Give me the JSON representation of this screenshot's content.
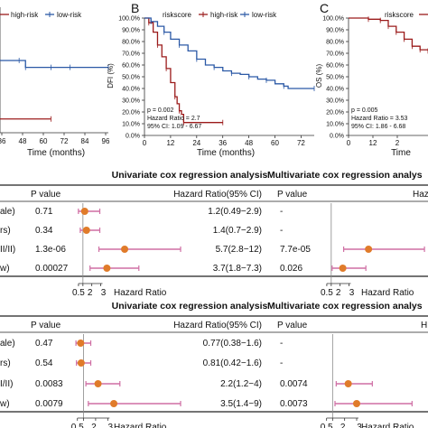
{
  "km_panels": [
    {
      "panel_label": "",
      "legend_title": "",
      "legend": [
        "high-risk",
        "low-risk"
      ],
      "x_ticks": [
        "36",
        "48",
        "60",
        "72",
        "84",
        "96"
      ],
      "y_ticks": [],
      "ylabel": "",
      "xlabel": "Time (months)",
      "annotation": []
    },
    {
      "panel_label": "B",
      "legend_title": "riskscore",
      "legend": [
        "high-risk",
        "low-risk"
      ],
      "x_ticks": [
        "0",
        "12",
        "24",
        "36",
        "48",
        "60",
        "72"
      ],
      "y_ticks": [
        "100.0%",
        "90.0%",
        "80.0%",
        "70.0%",
        "60.0%",
        "50.0%",
        "40.0%",
        "30.0%",
        "20.0%",
        "10.0%",
        "0.0%"
      ],
      "ylabel": "DFI (%)",
      "xlabel": "Time (months)",
      "annotation": [
        "p = 0.002",
        "Hazard Ratio = 2.7",
        "95% CI: 1.09 - 6.67"
      ]
    },
    {
      "panel_label": "C",
      "legend_title": "riskscore",
      "legend": [
        "high-risk",
        "low-risk"
      ],
      "x_ticks": [
        "0",
        "12",
        "2"
      ],
      "y_ticks": [
        "100.0%",
        "90.0%",
        "80.0%",
        "70.0%",
        "60.0%",
        "50.0%",
        "40.0%",
        "30.0%",
        "20.0%",
        "10.0%",
        "0.0%"
      ],
      "ylabel": "OS (%)",
      "xlabel": "Time",
      "annotation": [
        "p = 0.005",
        "Hazard Ratio = 3.53",
        "95% CI: 1.86 - 6.68"
      ]
    }
  ],
  "forest_tables": [
    {
      "uni_title": "Univariate cox regression analysis",
      "multi_title": "Multivariate cox regression analys",
      "p_header": "P value",
      "hr_header": "Hazard Ratio(95% CI)",
      "multi_p_header": "P value",
      "multi_hr_header": "Haza",
      "row_labels": [
        "ale)",
        "rs)",
        "II/II)",
        "w)"
      ],
      "uni_p": [
        "0.71",
        "0.34",
        "1.3e-06",
        "0.00027"
      ],
      "uni_hr_text": [
        "1.2(0.49−2.9)",
        "1.4(0.7−2.9)",
        "5.7(2.8−12)",
        "3.7(1.8−7.3)"
      ],
      "multi_p": [
        "-",
        "-",
        "7.7e-05",
        "0.026"
      ],
      "axis_ticks": [
        "0.5",
        "2",
        "3"
      ],
      "axis_label": "Hazard Ratio"
    },
    {
      "uni_title": "Univariate cox regression analysis",
      "multi_title": "Multivariate cox regression analys",
      "p_header": "P value",
      "hr_header": "Hazard Ratio(95% CI)",
      "multi_p_header": "P value",
      "multi_hr_header": "H",
      "row_labels": [
        "ale)",
        "rs)",
        "I/II)",
        "w)"
      ],
      "uni_p": [
        "0.47",
        "0.54",
        "0.0083",
        "0.0079"
      ],
      "uni_hr_text": [
        "0.77(0.38−1.6)",
        "0.81(0.42−1.6)",
        "2.2(1.2−4)",
        "3.5(1.4−9)"
      ],
      "multi_p": [
        "-",
        "-",
        "0.0074",
        "0.0073"
      ],
      "axis_ticks": [
        "0.5",
        "2",
        "3"
      ],
      "axis_label": "Hazard Ratio"
    }
  ],
  "chart_data": [
    {
      "type": "line",
      "chart": "km-A-partial",
      "x_range": [
        28,
        96
      ],
      "y_range": [
        0,
        1
      ],
      "series": [
        {
          "name": "high-risk",
          "color": "#9b1b1b",
          "x": [
            28,
            60
          ],
          "y": [
            0.12,
            0.12
          ]
        },
        {
          "name": "low-risk",
          "color": "#2b59a6",
          "x": [
            28,
            40,
            44,
            60,
            72,
            96
          ],
          "y": [
            0.63,
            0.63,
            0.57,
            0.57,
            0.57,
            0.57
          ]
        }
      ]
    },
    {
      "type": "line",
      "chart": "km-B",
      "x_range": [
        0,
        78
      ],
      "y_range": [
        0,
        1
      ],
      "series": [
        {
          "name": "high-risk",
          "color": "#9b1b1b",
          "x": [
            0,
            2,
            4,
            6,
            8,
            10,
            12,
            14,
            15,
            16,
            17,
            18,
            20,
            36
          ],
          "y": [
            1.0,
            0.96,
            0.88,
            0.77,
            0.67,
            0.57,
            0.45,
            0.33,
            0.27,
            0.21,
            0.18,
            0.11,
            0.11,
            0.11
          ]
        },
        {
          "name": "low-risk",
          "color": "#2b59a6",
          "x": [
            0,
            3,
            6,
            9,
            12,
            16,
            20,
            24,
            28,
            32,
            36,
            40,
            44,
            48,
            52,
            56,
            60,
            64,
            66,
            78
          ],
          "y": [
            1.0,
            0.97,
            0.93,
            0.88,
            0.82,
            0.77,
            0.72,
            0.65,
            0.6,
            0.58,
            0.55,
            0.53,
            0.52,
            0.5,
            0.48,
            0.47,
            0.44,
            0.42,
            0.4,
            0.4
          ]
        }
      ]
    },
    {
      "type": "line",
      "chart": "km-C-partial",
      "x_range": [
        0,
        20
      ],
      "y_range": [
        0,
        1
      ],
      "series": [
        {
          "name": "low-risk",
          "color": "#9b1b1b",
          "x": [
            0,
            5,
            8,
            10,
            12,
            14,
            16,
            18,
            20
          ],
          "y": [
            1.0,
            0.99,
            0.98,
            0.93,
            0.88,
            0.82,
            0.76,
            0.73,
            0.72
          ]
        }
      ]
    },
    {
      "type": "scatter",
      "chart": "forest-univariate-1",
      "axis_range": [
        0,
        12
      ],
      "estimates": [
        1.2,
        1.4,
        5.7,
        3.7
      ],
      "ci_low": [
        0.49,
        0.7,
        2.8,
        1.8
      ],
      "ci_high": [
        2.9,
        2.9,
        12,
        7.3
      ]
    },
    {
      "type": "scatter",
      "chart": "forest-multivariate-1",
      "axis_range": [
        0,
        12
      ],
      "estimates": [
        null,
        null,
        5.2,
        2.3
      ],
      "ci_low": [
        null,
        null,
        2.4,
        1.1
      ],
      "ci_high": [
        null,
        null,
        11.5,
        4.9
      ]
    },
    {
      "type": "scatter",
      "chart": "forest-univariate-2",
      "axis_range": [
        0,
        9
      ],
      "estimates": [
        0.77,
        0.81,
        2.2,
        3.5
      ],
      "ci_low": [
        0.38,
        0.42,
        1.2,
        1.4
      ],
      "ci_high": [
        1.6,
        1.6,
        4,
        9
      ]
    },
    {
      "type": "scatter",
      "chart": "forest-multivariate-2",
      "axis_range": [
        0,
        9
      ],
      "estimates": [
        null,
        null,
        2.3,
        3.0
      ],
      "ci_low": [
        null,
        null,
        1.3,
        1.2
      ],
      "ci_high": [
        null,
        null,
        4.3,
        7.6
      ]
    }
  ]
}
